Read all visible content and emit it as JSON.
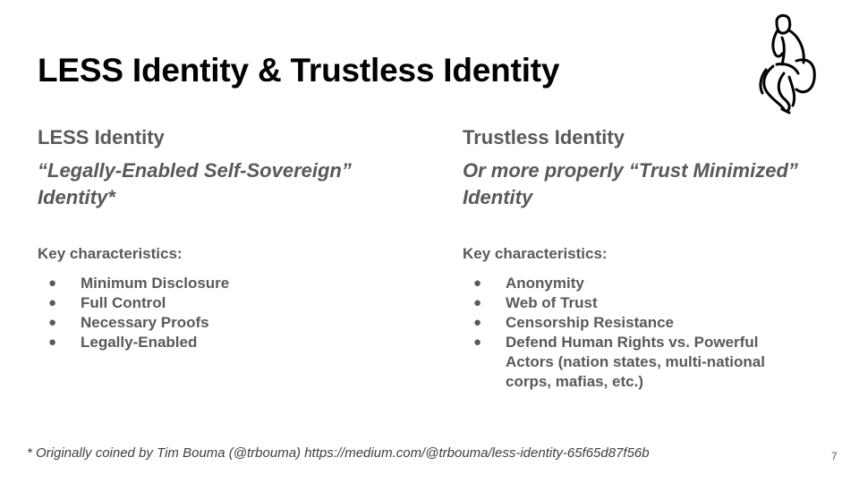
{
  "slide": {
    "title": "LESS Identity & Trustless Identity",
    "left_column": {
      "heading": "LESS Identity",
      "subtitle": "“Legally-Enabled Self-Sovereign” Identity*",
      "key_label": "Key characteristics:",
      "bullets": [
        "Minimum Disclosure",
        "Full Control",
        "Necessary Proofs",
        "Legally-Enabled"
      ]
    },
    "right_column": {
      "heading": "Trustless Identity",
      "subtitle": "Or more properly “Trust Minimized” Identity",
      "key_label": "Key characteristics:",
      "bullets": [
        "Anonymity",
        "Web of Trust",
        "Censorship Resistance",
        "Defend Human Rights vs. Powerful Actors (nation states, multi-national corps, mafias, etc.)"
      ]
    },
    "footnote": "* Originally coined by Tim Bouma (@trbouma) https://medium.com/@trbouma/less-identity-65f65d87f56b",
    "page_number": "7",
    "bullet_glyph": "●",
    "icon": "thinker-statue-icon"
  }
}
